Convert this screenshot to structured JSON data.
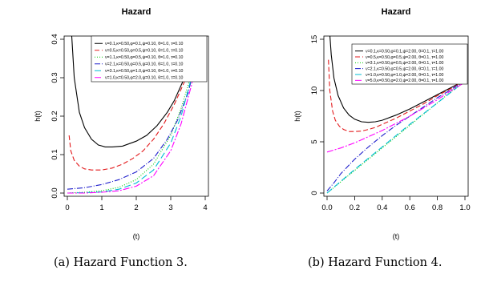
{
  "chart_data": [
    {
      "type": "line",
      "title": "Hazard",
      "xlabel": "(t)",
      "ylabel": "h(t)",
      "xlim": [
        0,
        4
      ],
      "ylim": [
        0,
        0.4
      ],
      "xticks": [
        "0",
        "1",
        "2",
        "3",
        "4"
      ],
      "yticks": [
        "0.0",
        "0.1",
        "0.2",
        "0.3",
        "0.4"
      ],
      "legend_position": "top-right",
      "caption": "(a) Hazard Function 3.",
      "series": [
        {
          "name": "ν=0.1,κ=0.50,φ=0.1,ψ=0.10, θ=1.0, τ=0.10",
          "color": "#000000",
          "dash": "solid",
          "x": [
            0.1,
            0.2,
            0.35,
            0.5,
            0.7,
            0.9,
            1.1,
            1.3,
            1.6,
            2.0,
            2.3,
            2.6,
            2.9,
            3.1,
            3.3,
            3.5,
            3.7,
            3.8
          ],
          "y": [
            0.45,
            0.3,
            0.21,
            0.17,
            0.14,
            0.125,
            0.12,
            0.12,
            0.122,
            0.135,
            0.15,
            0.175,
            0.21,
            0.24,
            0.28,
            0.32,
            0.37,
            0.4
          ]
        },
        {
          "name": "ν=0.5,κ=0.50,φ=0.5,ψ=0.10, θ=1.0, τ=0.10",
          "color": "#e31a1c",
          "dash": "6,3",
          "x": [
            0.05,
            0.1,
            0.2,
            0.35,
            0.5,
            0.7,
            1.0,
            1.3,
            1.6,
            1.9,
            2.2,
            2.5,
            2.8,
            3.1,
            3.4,
            3.7,
            3.85
          ],
          "y": [
            0.15,
            0.11,
            0.085,
            0.07,
            0.063,
            0.06,
            0.06,
            0.065,
            0.075,
            0.09,
            0.11,
            0.14,
            0.18,
            0.23,
            0.29,
            0.37,
            0.42
          ]
        },
        {
          "name": "ν=1.1,κ=0.50,φ=0.5,ψ=0.10, θ=1.0, τ=0.10",
          "color": "#00cd00",
          "dash": "1,2",
          "x": [
            0.0,
            0.5,
            1.0,
            1.5,
            2.0,
            2.5,
            3.0,
            3.3,
            3.6,
            3.85
          ],
          "y": [
            0.0,
            0.002,
            0.006,
            0.015,
            0.035,
            0.075,
            0.15,
            0.22,
            0.31,
            0.41
          ]
        },
        {
          "name": "ν=2.1,κ=0.50,φ=0.5,ψ=0.10, θ=1.0, τ=0.10",
          "color": "#1f1fcc",
          "dash": "7,2,1,2",
          "x": [
            0.0,
            0.5,
            1.0,
            1.5,
            2.0,
            2.5,
            2.9,
            3.2,
            3.5,
            3.7,
            3.85
          ],
          "y": [
            0.01,
            0.014,
            0.022,
            0.035,
            0.055,
            0.09,
            0.14,
            0.19,
            0.26,
            0.33,
            0.4
          ]
        },
        {
          "name": "ν=3.1,κ=0.50,φ=1.0,ψ=0.10, θ=1.0, τ=0.10",
          "color": "#00bcd4",
          "dash": "8,4",
          "x": [
            0.0,
            0.5,
            1.0,
            1.5,
            2.0,
            2.5,
            3.0,
            3.3,
            3.6,
            3.85
          ],
          "y": [
            0.0,
            0.001,
            0.003,
            0.01,
            0.026,
            0.06,
            0.13,
            0.2,
            0.3,
            0.41
          ]
        },
        {
          "name": "ν=1.0,κ=0.50,φ=2.0,ψ=0.10, θ=1.0, τ=0.10",
          "color": "#ff00ff",
          "dash": "8,2,2,2",
          "x": [
            0.0,
            0.5,
            1.0,
            1.5,
            2.0,
            2.5,
            3.0,
            3.3,
            3.6,
            3.85
          ],
          "y": [
            0.0,
            0.0,
            0.002,
            0.006,
            0.018,
            0.045,
            0.11,
            0.18,
            0.28,
            0.4
          ]
        }
      ]
    },
    {
      "type": "line",
      "title": "Hazard",
      "xlabel": "(t)",
      "ylabel": "h(t)",
      "xlim": [
        0,
        1
      ],
      "ylim": [
        0,
        15
      ],
      "xticks": [
        "0.0",
        "0.2",
        "0.4",
        "0.6",
        "0.8",
        "1.0"
      ],
      "yticks": [
        "0",
        "5",
        "10",
        "15"
      ],
      "legend_position": "top-right",
      "caption": "(b) Hazard Function 4.",
      "series": [
        {
          "name": "ν=0.1,κ=0.50,φ=0.1,ψ=2.00, θ=0.1, τ=1.00",
          "color": "#000000",
          "dash": "solid",
          "x": [
            0.02,
            0.03,
            0.05,
            0.08,
            0.12,
            0.16,
            0.2,
            0.25,
            0.3,
            0.35,
            0.4,
            0.5,
            0.6,
            0.7,
            0.8,
            0.9,
            1.0
          ],
          "y": [
            15.5,
            13.5,
            11.2,
            9.5,
            8.3,
            7.6,
            7.2,
            6.95,
            6.9,
            6.95,
            7.1,
            7.6,
            8.2,
            8.9,
            9.6,
            10.3,
            11.0
          ]
        },
        {
          "name": "ν=0.5,κ=0.50,φ=0.5,ψ=2.00, θ=0.1, τ=1.00",
          "color": "#e31a1c",
          "dash": "6,3",
          "x": [
            0.01,
            0.02,
            0.04,
            0.06,
            0.09,
            0.12,
            0.16,
            0.2,
            0.25,
            0.3,
            0.35,
            0.4,
            0.5,
            0.6,
            0.7,
            0.8,
            0.9,
            1.0
          ],
          "y": [
            13.0,
            10.0,
            8.0,
            7.1,
            6.5,
            6.2,
            6.0,
            6.0,
            6.05,
            6.2,
            6.4,
            6.7,
            7.3,
            8.0,
            8.7,
            9.5,
            10.2,
            11.0
          ]
        },
        {
          "name": "ν=3.1,κ=0.50,φ=0.5,ψ=2.00, θ=0.1, τ=1.00",
          "color": "#00cd00",
          "dash": "1,2",
          "x": [
            0.0,
            0.2,
            0.4,
            0.6,
            0.8,
            1.0
          ],
          "y": [
            0.0,
            2.2,
            4.4,
            6.6,
            8.8,
            11.0
          ]
        },
        {
          "name": "ν=2.1,κ=0.50,φ=0.5,ψ=2.00, θ=0.1, τ=1.00",
          "color": "#1f1fcc",
          "dash": "7,2,1,2",
          "x": [
            0.0,
            0.05,
            0.1,
            0.2,
            0.3,
            0.4,
            0.5,
            0.6,
            0.7,
            0.8,
            0.9,
            1.0
          ],
          "y": [
            0.2,
            1.0,
            1.9,
            3.3,
            4.5,
            5.6,
            6.6,
            7.5,
            8.4,
            9.3,
            10.1,
            11.0
          ]
        },
        {
          "name": "ν=1.0,κ=0.50,φ=1.0,ψ=2.00, θ=0.1, τ=1.00",
          "color": "#00bcd4",
          "dash": "8,4",
          "x": [
            0.0,
            0.2,
            0.4,
            0.6,
            0.8,
            1.0
          ],
          "y": [
            0.0,
            2.3,
            4.5,
            6.7,
            8.8,
            10.9
          ]
        },
        {
          "name": "ν=5.0,κ=0.50,φ=2.0,ψ=2.00, θ=0.1, τ=1.00",
          "color": "#ff00ff",
          "dash": "8,2,2,2",
          "x": [
            0.0,
            0.1,
            0.2,
            0.3,
            0.4,
            0.5,
            0.6,
            0.7,
            0.8,
            0.9,
            1.0
          ],
          "y": [
            4.0,
            4.4,
            4.9,
            5.5,
            6.1,
            6.8,
            7.5,
            8.3,
            9.1,
            10.0,
            10.8
          ]
        }
      ]
    }
  ]
}
